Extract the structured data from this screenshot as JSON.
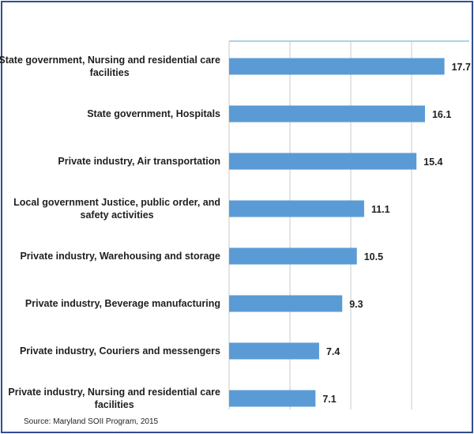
{
  "chart_data": {
    "type": "bar",
    "orientation": "horizontal",
    "categories": [
      [
        "State government, Nursing and residential care",
        "facilities"
      ],
      [
        "State government,  Hospitals"
      ],
      [
        "Private industry,  Air transportation"
      ],
      [
        "Local government Justice, public order, and",
        "safety activities"
      ],
      [
        "Private industry,  Warehousing and storage"
      ],
      [
        "Private industry, Beverage manufacturing"
      ],
      [
        "Private industry, Couriers and messengers"
      ],
      [
        "Private industry, Nursing and residential care",
        "facilities"
      ]
    ],
    "values": [
      17.7,
      16.1,
      15.4,
      11.1,
      10.5,
      9.3,
      7.4,
      7.1
    ],
    "value_labels": [
      "17.7",
      "16.1",
      "15.4",
      "11.1",
      "10.5",
      "9.3",
      "7.4",
      "7.1"
    ],
    "xlim": [
      0,
      20
    ],
    "grid": true,
    "bar_color": "#5b9bd5",
    "grid_color": "#c8c8c8",
    "axis_color": "#8ec5dd"
  },
  "source": "Source: Maryland  SOII Program, 2015"
}
